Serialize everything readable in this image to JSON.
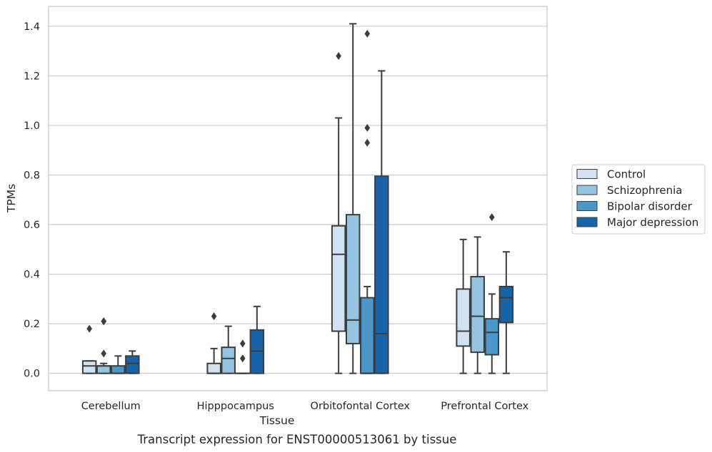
{
  "chart_data": {
    "type": "box",
    "title": "",
    "caption": "Transcript expression for ENST00000513061 by tissue",
    "xlabel": "Tissue",
    "ylabel": "TPMs",
    "ylim": [
      -0.07,
      1.48
    ],
    "yticks": [
      0.0,
      0.2,
      0.4,
      0.6,
      0.8,
      1.0,
      1.2,
      1.4
    ],
    "ytick_labels": [
      "0.0",
      "0.2",
      "0.4",
      "0.6",
      "0.8",
      "1.0",
      "1.2",
      "1.4"
    ],
    "grid": true,
    "legend_position": "right",
    "categories": [
      "Cerebellum",
      "Hipppocampus",
      "Orbitofontal Cortex",
      "Prefrontal Cortex"
    ],
    "series": [
      {
        "name": "Control",
        "color": "#d0e1f2",
        "boxes": [
          {
            "whislo": 0.0,
            "q1": 0.0,
            "med": 0.03,
            "q3": 0.05,
            "whishi": 0.05,
            "fliers": [
              0.18
            ]
          },
          {
            "whislo": 0.0,
            "q1": 0.0,
            "med": 0.0,
            "q3": 0.04,
            "whishi": 0.1,
            "fliers": [
              0.23
            ]
          },
          {
            "whislo": 0.0,
            "q1": 0.17,
            "med": 0.48,
            "q3": 0.595,
            "whishi": 1.03,
            "fliers": [
              1.28
            ]
          },
          {
            "whislo": 0.0,
            "q1": 0.11,
            "med": 0.17,
            "q3": 0.34,
            "whishi": 0.54,
            "fliers": []
          }
        ]
      },
      {
        "name": "Schizophrenia",
        "color": "#94c4df",
        "boxes": [
          {
            "whislo": 0.0,
            "q1": 0.0,
            "med": 0.03,
            "q3": 0.03,
            "whishi": 0.04,
            "fliers": [
              0.08,
              0.21,
              0.21
            ]
          },
          {
            "whislo": 0.0,
            "q1": 0.0,
            "med": 0.06,
            "q3": 0.105,
            "whishi": 0.19,
            "fliers": []
          },
          {
            "whislo": 0.0,
            "q1": 0.12,
            "med": 0.215,
            "q3": 0.64,
            "whishi": 1.41,
            "fliers": []
          },
          {
            "whislo": 0.0,
            "q1": 0.085,
            "med": 0.23,
            "q3": 0.39,
            "whishi": 0.55,
            "fliers": []
          }
        ]
      },
      {
        "name": "Bipolar disorder",
        "color": "#4a98c9",
        "boxes": [
          {
            "whislo": 0.0,
            "q1": 0.0,
            "med": 0.0,
            "q3": 0.03,
            "whishi": 0.07,
            "fliers": []
          },
          {
            "whislo": 0.0,
            "q1": 0.0,
            "med": 0.0,
            "q3": 0.0,
            "whishi": 0.0,
            "fliers": [
              0.06,
              0.12
            ]
          },
          {
            "whislo": 0.0,
            "q1": 0.0,
            "med": 0.0,
            "q3": 0.305,
            "whishi": 0.35,
            "fliers": [
              0.93,
              0.99,
              1.37
            ]
          },
          {
            "whislo": 0.0,
            "q1": 0.075,
            "med": 0.165,
            "q3": 0.22,
            "whishi": 0.32,
            "fliers": [
              0.63
            ]
          }
        ]
      },
      {
        "name": "Major depression",
        "color": "#1764ab",
        "boxes": [
          {
            "whislo": 0.0,
            "q1": 0.0,
            "med": 0.04,
            "q3": 0.07,
            "whishi": 0.09,
            "fliers": []
          },
          {
            "whislo": 0.0,
            "q1": 0.0,
            "med": 0.09,
            "q3": 0.175,
            "whishi": 0.27,
            "fliers": []
          },
          {
            "whislo": 0.0,
            "q1": 0.0,
            "med": 0.16,
            "q3": 0.795,
            "whishi": 1.22,
            "fliers": []
          },
          {
            "whislo": 0.0,
            "q1": 0.205,
            "med": 0.305,
            "q3": 0.35,
            "whishi": 0.49,
            "fliers": []
          }
        ]
      }
    ]
  }
}
